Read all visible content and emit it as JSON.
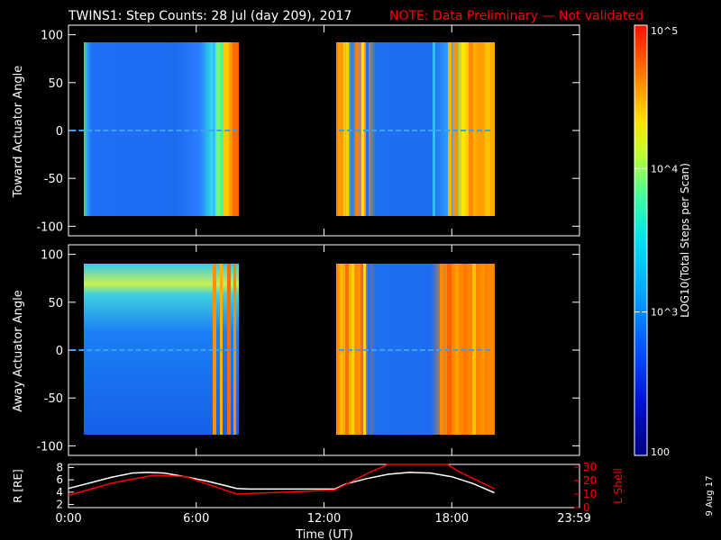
{
  "header": {
    "title": "TWINS1: Step Counts: 28 Jul (day 209), 2017",
    "note": "NOTE: Data Preliminary — Not validated",
    "note_color": "#ff0000"
  },
  "footer": {
    "date_stamp": "9 Aug 17"
  },
  "chart_data": [
    {
      "type": "heatmap",
      "ylabel": "Toward Actuator Angle",
      "ylim": [
        -110,
        110
      ],
      "yticks": [
        100,
        50,
        0,
        -50,
        -100
      ],
      "angle_range": [
        -90,
        90
      ],
      "data_blocks_hours": [
        [
          0.1,
          7.9
        ],
        [
          12.7,
          19.9
        ]
      ],
      "grid": false
    },
    {
      "type": "heatmap",
      "ylabel": "Away Actuator Angle",
      "ylim": [
        -110,
        110
      ],
      "yticks": [
        100,
        50,
        0,
        -50,
        -100
      ],
      "angle_range": [
        -90,
        90
      ],
      "data_blocks_hours": [
        [
          0.1,
          7.9
        ],
        [
          12.7,
          19.9
        ]
      ],
      "grid": false
    },
    {
      "type": "line",
      "x_units": "hours UT",
      "xlim": [
        0,
        24
      ],
      "xticks": [
        "0:00",
        "6:00",
        "12:00",
        "18:00",
        "23:59"
      ],
      "xlabel": "Time (UT)",
      "left_axis": {
        "label": "R [RE]",
        "ylim": [
          1.5,
          8.5
        ],
        "ticks": [
          "8",
          "6",
          "4",
          "2"
        ]
      },
      "right_axis": {
        "label": "L Shell",
        "color": "#ff0000",
        "ylim": [
          0,
          32
        ],
        "ticks": [
          "30",
          "20",
          "10",
          "0"
        ]
      },
      "series": [
        {
          "axis": "left",
          "color": "#ffffff",
          "x": [
            0,
            1,
            2,
            3,
            3.7,
            4.5,
            5.5,
            6.5,
            7.9,
            8.5,
            10,
            12.5,
            13,
            14,
            15,
            16,
            17,
            18,
            19,
            20
          ],
          "y": [
            4.6,
            5.5,
            6.4,
            7.1,
            7.2,
            7.1,
            6.5,
            5.8,
            4.6,
            4.5,
            4.5,
            4.5,
            5.3,
            6.2,
            6.9,
            7.2,
            7.1,
            6.5,
            5.4,
            3.9
          ]
        },
        {
          "axis": "right",
          "color": "#ff0000",
          "x": [
            0,
            2,
            4,
            5.5,
            7.9,
            12.5,
            14,
            15,
            17.8,
            18.3,
            20
          ],
          "y": [
            9,
            18,
            24,
            23,
            10,
            13,
            25,
            34,
            34,
            27,
            14
          ]
        }
      ]
    }
  ],
  "colorbar": {
    "label": "LOG10(Total Steps per Scan)",
    "ticks": [
      "10^5",
      "10^4",
      "10^3",
      "100"
    ],
    "range": [
      100,
      100000
    ],
    "scale": "log"
  }
}
